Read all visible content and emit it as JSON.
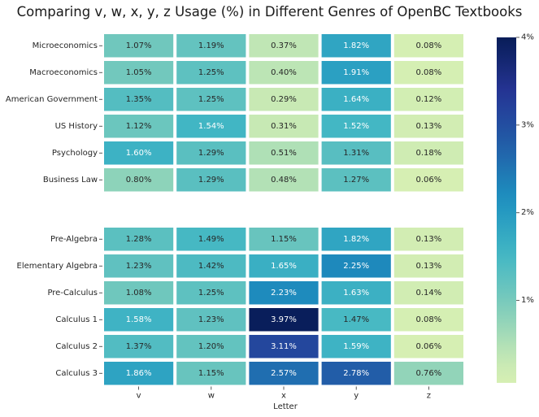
{
  "chart_data": {
    "type": "heatmap",
    "title": "Comparing v, w, x, y, z Usage (%) in Different Genres of OpenBC Textbooks",
    "xlabel": "Letter",
    "ylabel": "",
    "columns": [
      "v",
      "w",
      "x",
      "y",
      "z"
    ],
    "groups": [
      {
        "rows": [
          {
            "label": "Microeconomics",
            "values": [
              1.07,
              1.19,
              0.37,
              1.82,
              0.08
            ],
            "texts": [
              "1.07%",
              "1.19%",
              "0.37%",
              "1.82%",
              "0.08%"
            ]
          },
          {
            "label": "Macroeconomics",
            "values": [
              1.05,
              1.25,
              0.4,
              1.91,
              0.08
            ],
            "texts": [
              "1.05%",
              "1.25%",
              "0.40%",
              "1.91%",
              "0.08%"
            ]
          },
          {
            "label": "American Government",
            "values": [
              1.35,
              1.25,
              0.29,
              1.64,
              0.12
            ],
            "texts": [
              "1.35%",
              "1.25%",
              "0.29%",
              "1.64%",
              "0.12%"
            ]
          },
          {
            "label": "US History",
            "values": [
              1.12,
              1.54,
              0.31,
              1.52,
              0.13
            ],
            "texts": [
              "1.12%",
              "1.54%",
              "0.31%",
              "1.52%",
              "0.13%"
            ]
          },
          {
            "label": "Psychology",
            "values": [
              1.6,
              1.29,
              0.51,
              1.31,
              0.18
            ],
            "texts": [
              "1.60%",
              "1.29%",
              "0.51%",
              "1.31%",
              "0.18%"
            ]
          },
          {
            "label": "Business Law",
            "values": [
              0.8,
              1.29,
              0.48,
              1.27,
              0.06
            ],
            "texts": [
              "0.80%",
              "1.29%",
              "0.48%",
              "1.27%",
              "0.06%"
            ]
          }
        ]
      },
      {
        "rows": [
          {
            "label": "Pre-Algebra",
            "values": [
              1.28,
              1.49,
              1.15,
              1.82,
              0.13
            ],
            "texts": [
              "1.28%",
              "1.49%",
              "1.15%",
              "1.82%",
              "0.13%"
            ]
          },
          {
            "label": "Elementary Algebra",
            "values": [
              1.23,
              1.42,
              1.65,
              2.25,
              0.13
            ],
            "texts": [
              "1.23%",
              "1.42%",
              "1.65%",
              "2.25%",
              "0.13%"
            ]
          },
          {
            "label": "Pre-Calculus",
            "values": [
              1.08,
              1.25,
              2.23,
              1.63,
              0.14
            ],
            "texts": [
              "1.08%",
              "1.25%",
              "2.23%",
              "1.63%",
              "0.14%"
            ]
          },
          {
            "label": "Calculus 1",
            "values": [
              1.58,
              1.23,
              3.97,
              1.47,
              0.08
            ],
            "texts": [
              "1.58%",
              "1.23%",
              "3.97%",
              "1.47%",
              "0.08%"
            ]
          },
          {
            "label": "Calculus 2",
            "values": [
              1.37,
              1.2,
              3.11,
              1.59,
              0.06
            ],
            "texts": [
              "1.37%",
              "1.20%",
              "3.11%",
              "1.59%",
              "0.06%"
            ]
          },
          {
            "label": "Calculus 3",
            "values": [
              1.86,
              1.15,
              2.57,
              2.78,
              0.76
            ],
            "texts": [
              "1.86%",
              "1.15%",
              "2.57%",
              "2.78%",
              "0.76%"
            ]
          }
        ]
      }
    ],
    "colorbar": {
      "colormap": "YlGnBu",
      "vmin": 0.06,
      "vmax": 4.0,
      "ticks": [
        1,
        2,
        3,
        4
      ],
      "tick_labels": [
        "1%",
        "2%",
        "3%",
        "4%"
      ]
    },
    "grid": false,
    "legend": "colorbar-right"
  }
}
